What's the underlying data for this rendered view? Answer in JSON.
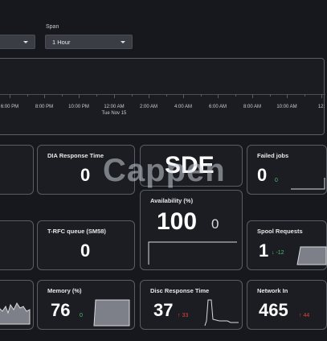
{
  "filters": {
    "span_label": "Span",
    "span_value": "1 Hour"
  },
  "timeline": {
    "ticks": [
      {
        "time": "6:00 PM",
        "sub": ""
      },
      {
        "time": "8:00 PM",
        "sub": ""
      },
      {
        "time": "10:00 PM",
        "sub": ""
      },
      {
        "time": "12:00 AM",
        "sub": "Tue Nov 15"
      },
      {
        "time": "2:00 AM",
        "sub": ""
      },
      {
        "time": "4:00 AM",
        "sub": ""
      },
      {
        "time": "6:00 AM",
        "sub": ""
      },
      {
        "time": "8:00 AM",
        "sub": ""
      },
      {
        "time": "10:00 AM",
        "sub": ""
      },
      {
        "time": "12:",
        "sub": ""
      }
    ]
  },
  "panels": {
    "dia": {
      "title": "DIA Response Time",
      "value": "0"
    },
    "sde": {
      "title": "SDE"
    },
    "failed": {
      "title": "Failed jobs",
      "value": "0",
      "delta": "0"
    },
    "availability": {
      "title": "Availability (%)",
      "value": "100",
      "delta": "0"
    },
    "trfc": {
      "title": "T-RFC queue (SM58)",
      "value": "0"
    },
    "spool": {
      "title": "Spool Requests",
      "value": "1",
      "delta": "↓ -12"
    },
    "memory": {
      "title": "Memory (%)",
      "value": "76",
      "delta": "0"
    },
    "disc": {
      "title": "Disc Response Time",
      "value": "37",
      "delta": "↑ 33"
    },
    "network": {
      "title": "Network In",
      "value": "465",
      "delta": "↑ 44"
    }
  },
  "watermark": "Cappen",
  "colors": {
    "background": "#16181d",
    "panel_border": "#5a5d64",
    "up_good": "#4bbf73",
    "up_bad": "#e0443b"
  }
}
